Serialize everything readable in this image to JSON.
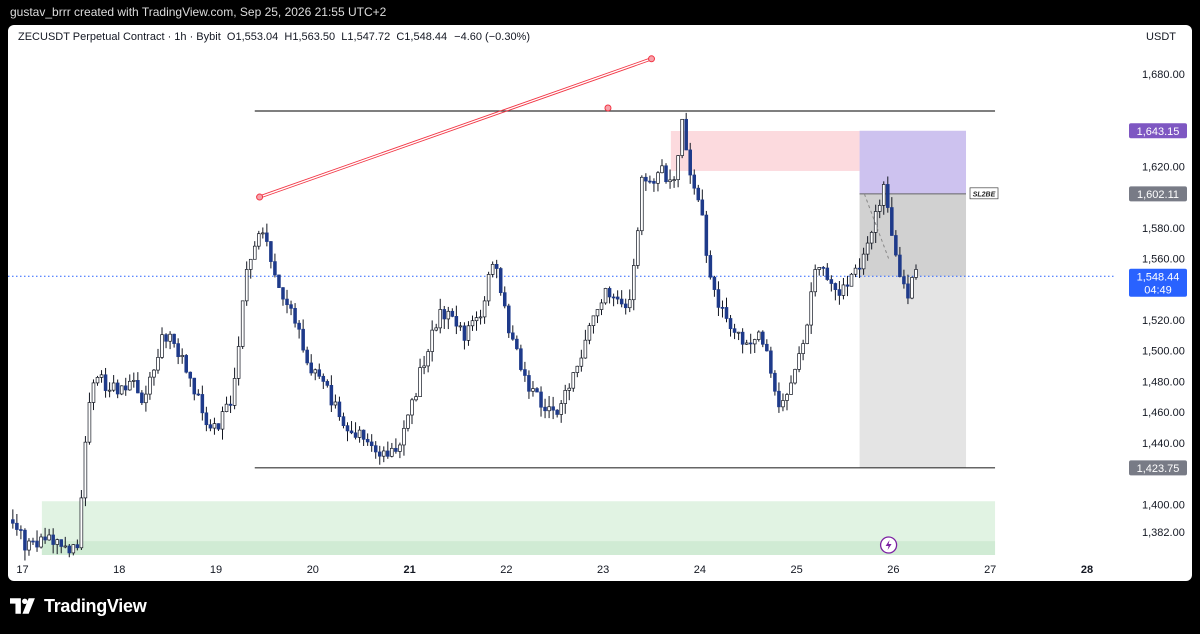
{
  "header": {
    "credit": "gustav_brrr created with TradingView.com, Sep 25, 2026 21:55 UTC+2"
  },
  "legend": {
    "symbol": "ZECUSDT Perpetual Contract · 1h · Bybit",
    "open": "O1,553.04",
    "high": "H1,563.50",
    "low": "L1,547.72",
    "close": "C1,548.44",
    "change": "−4.60 (−0.30%)"
  },
  "currency": "USDT",
  "footer": {
    "brand": "TradingView"
  },
  "colors": {
    "up": "#ffffff",
    "down": "#1e3a8a",
    "wick": "#131722",
    "trendline": "#f23645",
    "target_zone": "#b8a8e8",
    "stop_zone": "#fbd3d8",
    "demand_zone": "#d7efd9",
    "price_line": "#2962ff",
    "purple_label": "#7e57c2"
  },
  "chart_data": {
    "type": "candlestick",
    "title": "ZECUSDT Perpetual Contract · 1h · Bybit",
    "x_ticks": [
      {
        "day": 17,
        "label": "17",
        "bold": false
      },
      {
        "day": 18,
        "label": "18",
        "bold": false
      },
      {
        "day": 19,
        "label": "19",
        "bold": false
      },
      {
        "day": 20,
        "label": "20",
        "bold": false
      },
      {
        "day": 21,
        "label": "21",
        "bold": true
      },
      {
        "day": 22,
        "label": "22",
        "bold": false
      },
      {
        "day": 23,
        "label": "23",
        "bold": false
      },
      {
        "day": 24,
        "label": "24",
        "bold": false
      },
      {
        "day": 25,
        "label": "25",
        "bold": false
      },
      {
        "day": 26,
        "label": "26",
        "bold": false
      },
      {
        "day": 27,
        "label": "27",
        "bold": false
      },
      {
        "day": 28,
        "label": "28",
        "bold": true
      }
    ],
    "x_range": [
      16.85,
      28.3
    ],
    "y_range": [
      1367,
      1712
    ],
    "y_ticks": [
      {
        "value": 1680,
        "label": "1,680.00"
      },
      {
        "value": 1620,
        "label": "1,620.00"
      },
      {
        "value": 1580,
        "label": "1,580.00"
      },
      {
        "value": 1560,
        "label": "1,560.00"
      },
      {
        "value": 1520,
        "label": "1,520.00"
      },
      {
        "value": 1500,
        "label": "1,500.00"
      },
      {
        "value": 1480,
        "label": "1,480.00"
      },
      {
        "value": 1460,
        "label": "1,460.00"
      },
      {
        "value": 1440,
        "label": "1,440.00"
      },
      {
        "value": 1400,
        "label": "1,400.00"
      },
      {
        "value": 1382,
        "label": "1,382.00"
      }
    ],
    "price_labels": [
      {
        "value": 1643.15,
        "label": "1,643.15",
        "style": "purple"
      },
      {
        "value": 1602.11,
        "label": "1,602.11",
        "style": "gray"
      },
      {
        "value": 1548.44,
        "label": "1,548.44",
        "sub": "04:49",
        "style": "blue"
      },
      {
        "value": 1423.75,
        "label": "1,423.75",
        "style": "gray"
      }
    ],
    "current_price": 1548.44,
    "annotations": {
      "sl_label": "SL2BE",
      "resistance": {
        "value": 1656.0,
        "x_from": 19.4,
        "x_to": 27.05
      },
      "support": {
        "value": 1423.75,
        "x_from": 19.4,
        "x_to": 27.05
      },
      "trendline": {
        "x1": 19.45,
        "y1": 1600,
        "x2": 23.5,
        "y2": 1690
      },
      "trend_points": [
        {
          "x": 19.45,
          "y": 1600
        },
        {
          "x": 23.05,
          "y": 1658
        },
        {
          "x": 23.5,
          "y": 1690
        }
      ],
      "stop_zone": {
        "x_from": 23.7,
        "x_to": 25.65,
        "y_from": 1617,
        "y_to": 1643
      },
      "target_zone": {
        "x_from": 25.65,
        "x_to": 26.75,
        "y_from": 1602.11,
        "y_to": 1643.15
      },
      "sl2be_zone": {
        "x_from": 25.65,
        "x_to": 26.75,
        "y_from": 1548.44,
        "y_to": 1602.11
      },
      "reward_zone": {
        "x_from": 25.65,
        "x_to": 26.75,
        "y_from": 1423.75,
        "y_to": 1548.44
      },
      "demand_zone": {
        "x_from": 17.2,
        "x_to": 27.05,
        "y_from": 1367,
        "y_to": 1402
      },
      "dashed_projection": {
        "x1": 25.7,
        "y1": 1602,
        "x2": 25.95,
        "y2": 1560
      }
    },
    "anchors": [
      {
        "d": 16.9,
        "p": 1390
      },
      {
        "d": 17.1,
        "p": 1372
      },
      {
        "d": 17.3,
        "p": 1378
      },
      {
        "d": 17.5,
        "p": 1371
      },
      {
        "d": 17.62,
        "p": 1375
      },
      {
        "d": 17.72,
        "p": 1468
      },
      {
        "d": 17.8,
        "p": 1482
      },
      {
        "d": 18.0,
        "p": 1475
      },
      {
        "d": 18.15,
        "p": 1480
      },
      {
        "d": 18.3,
        "p": 1468
      },
      {
        "d": 18.5,
        "p": 1512
      },
      {
        "d": 18.65,
        "p": 1500
      },
      {
        "d": 18.9,
        "p": 1462
      },
      {
        "d": 19.0,
        "p": 1448
      },
      {
        "d": 19.2,
        "p": 1465
      },
      {
        "d": 19.35,
        "p": 1550
      },
      {
        "d": 19.5,
        "p": 1584
      },
      {
        "d": 19.6,
        "p": 1560
      },
      {
        "d": 19.7,
        "p": 1538
      },
      {
        "d": 19.85,
        "p": 1520
      },
      {
        "d": 20.0,
        "p": 1490
      },
      {
        "d": 20.2,
        "p": 1472
      },
      {
        "d": 20.4,
        "p": 1452
      },
      {
        "d": 20.6,
        "p": 1440
      },
      {
        "d": 20.8,
        "p": 1430
      },
      {
        "d": 21.0,
        "p": 1448
      },
      {
        "d": 21.15,
        "p": 1485
      },
      {
        "d": 21.3,
        "p": 1518
      },
      {
        "d": 21.45,
        "p": 1528
      },
      {
        "d": 21.6,
        "p": 1510
      },
      {
        "d": 21.75,
        "p": 1520
      },
      {
        "d": 21.92,
        "p": 1562
      },
      {
        "d": 22.05,
        "p": 1520
      },
      {
        "d": 22.2,
        "p": 1485
      },
      {
        "d": 22.4,
        "p": 1465
      },
      {
        "d": 22.6,
        "p": 1462
      },
      {
        "d": 22.75,
        "p": 1490
      },
      {
        "d": 22.95,
        "p": 1520
      },
      {
        "d": 23.1,
        "p": 1540
      },
      {
        "d": 23.2,
        "p": 1528
      },
      {
        "d": 23.3,
        "p": 1528
      },
      {
        "d": 23.38,
        "p": 1560
      },
      {
        "d": 23.45,
        "p": 1618
      },
      {
        "d": 23.55,
        "p": 1608
      },
      {
        "d": 23.62,
        "p": 1622
      },
      {
        "d": 23.7,
        "p": 1605
      },
      {
        "d": 23.8,
        "p": 1616
      },
      {
        "d": 23.85,
        "p": 1650
      },
      {
        "d": 23.95,
        "p": 1612
      },
      {
        "d": 24.05,
        "p": 1600
      },
      {
        "d": 24.12,
        "p": 1560
      },
      {
        "d": 24.2,
        "p": 1532
      },
      {
        "d": 24.35,
        "p": 1515
      },
      {
        "d": 24.5,
        "p": 1505
      },
      {
        "d": 24.65,
        "p": 1512
      },
      {
        "d": 24.75,
        "p": 1495
      },
      {
        "d": 24.88,
        "p": 1462
      },
      {
        "d": 25.0,
        "p": 1478
      },
      {
        "d": 25.12,
        "p": 1510
      },
      {
        "d": 25.22,
        "p": 1548
      },
      {
        "d": 25.35,
        "p": 1552
      },
      {
        "d": 25.5,
        "p": 1535
      },
      {
        "d": 25.6,
        "p": 1548
      },
      {
        "d": 25.72,
        "p": 1555
      },
      {
        "d": 25.85,
        "p": 1588
      },
      {
        "d": 25.95,
        "p": 1605
      },
      {
        "d": 26.05,
        "p": 1568
      },
      {
        "d": 26.12,
        "p": 1545
      },
      {
        "d": 26.18,
        "p": 1532
      },
      {
        "d": 26.25,
        "p": 1548
      }
    ]
  }
}
